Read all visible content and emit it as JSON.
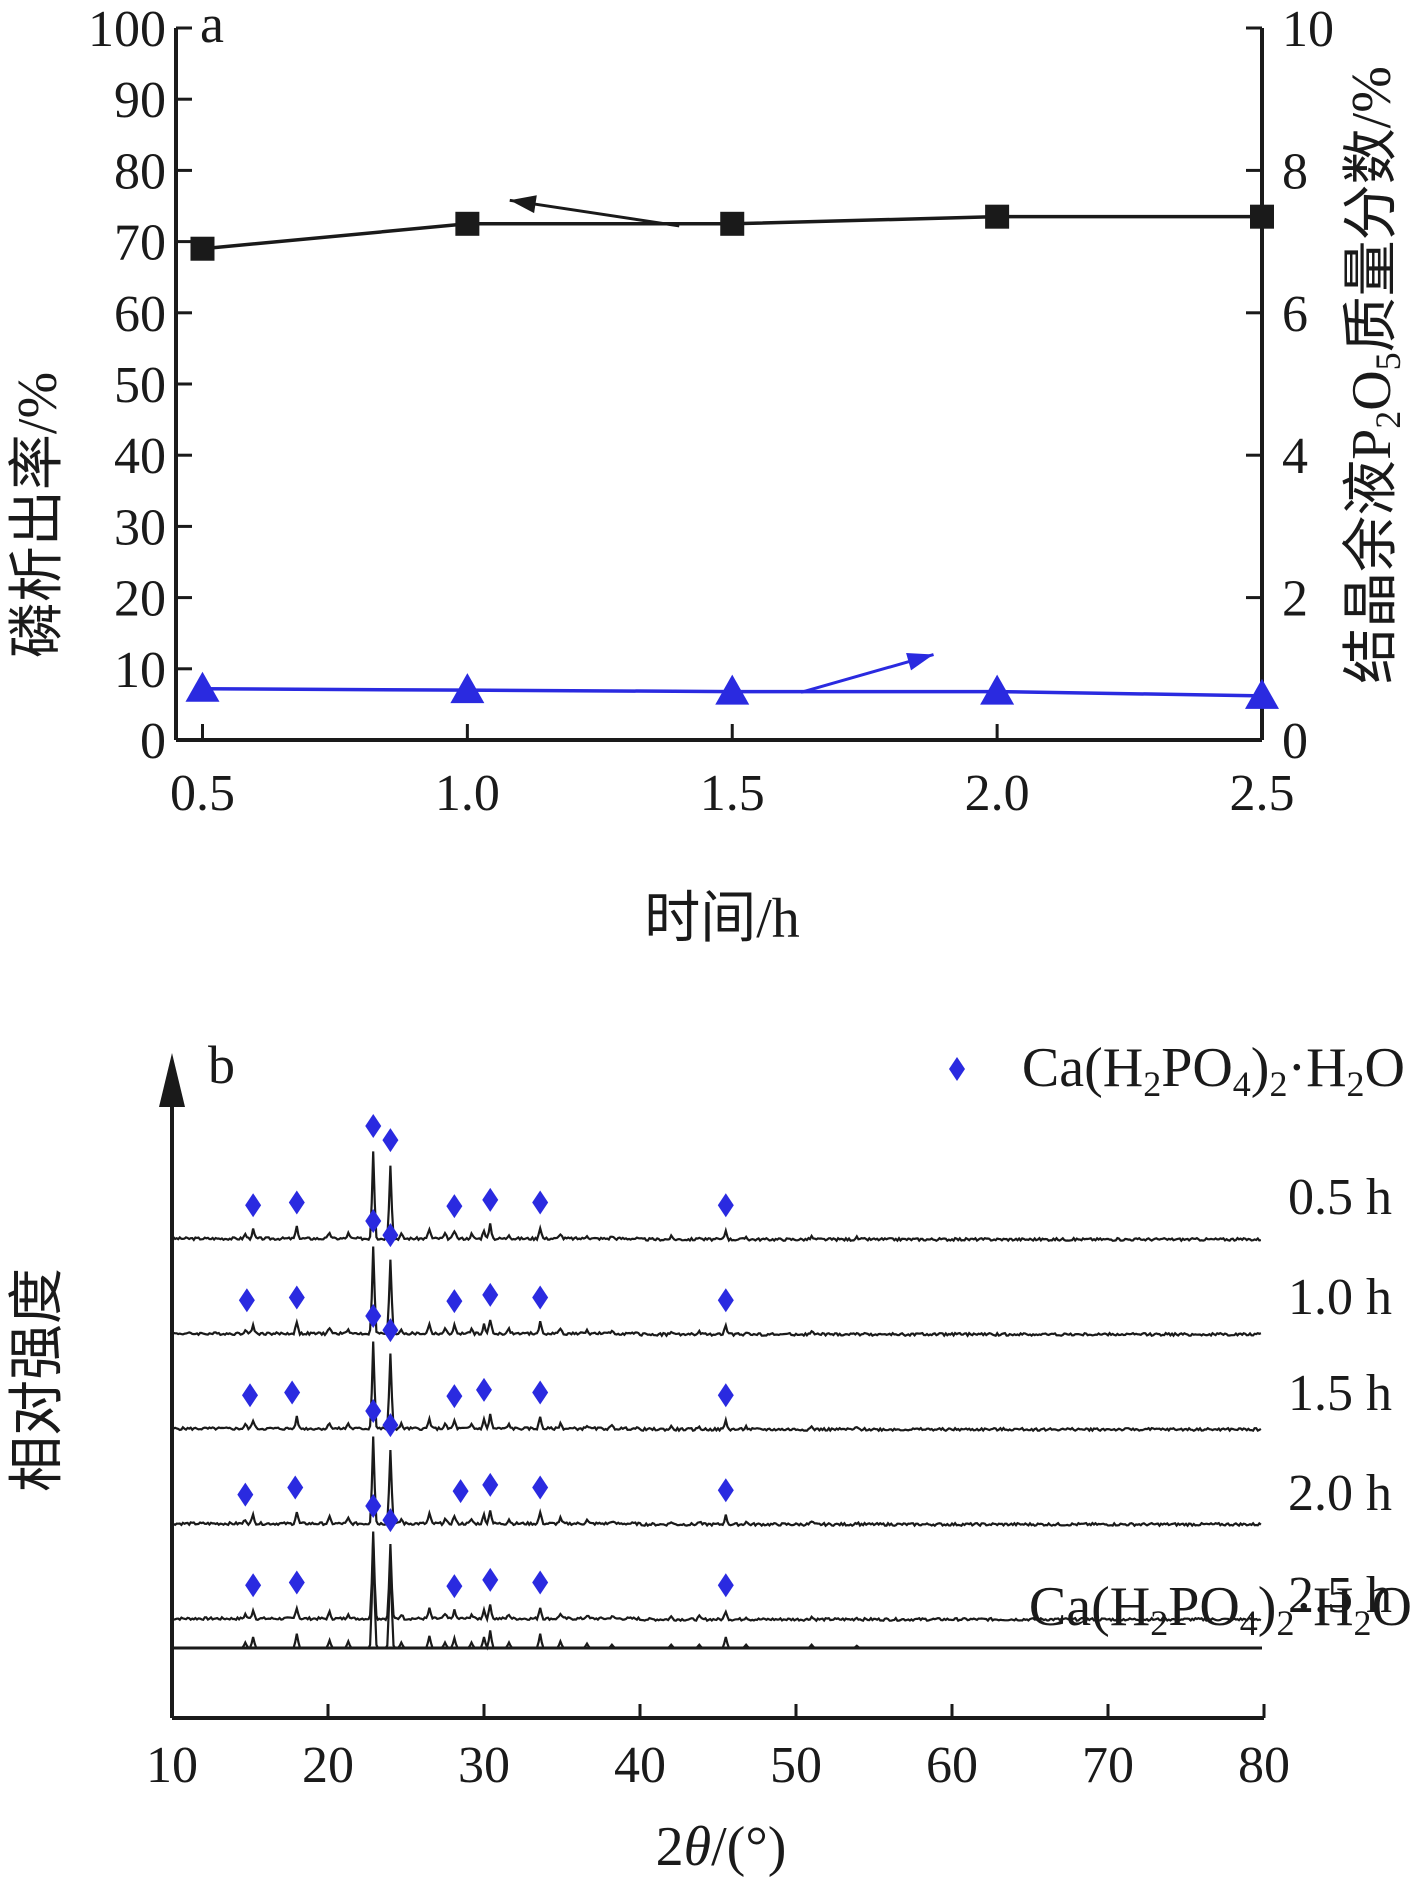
{
  "chart_data": [
    {
      "panel": "a",
      "type": "line",
      "x": [
        0.5,
        1.0,
        1.5,
        2.0,
        2.5
      ],
      "xlabel": "时间/h",
      "xlim": [
        0.45,
        2.5
      ],
      "x_ticks": [
        "0.5",
        "1.0",
        "1.5",
        "2.0",
        "2.5"
      ],
      "ylabel_left_parts": [
        "磷析出率/%"
      ],
      "ylabel_right_parts": [
        "结晶余液P",
        "2",
        "O",
        "5",
        "质量分数/%"
      ],
      "ylim_left": [
        0,
        100
      ],
      "ylim_right": [
        0,
        10
      ],
      "y_ticks_left": [
        "0",
        "10",
        "20",
        "30",
        "40",
        "50",
        "60",
        "70",
        "80",
        "90",
        "100"
      ],
      "y_ticks_right": [
        "0",
        "2",
        "4",
        "6",
        "8",
        "10"
      ],
      "series": [
        {
          "axis": "left",
          "marker": "square",
          "color": "#1a1a1a",
          "values": [
            69,
            72.5,
            72.5,
            73.5,
            73.5
          ]
        },
        {
          "axis": "right",
          "marker": "triangle",
          "color": "#2a2ae0",
          "values": [
            0.72,
            0.7,
            0.68,
            0.68,
            0.62
          ]
        }
      ],
      "arrows": [
        {
          "from": [
            1.4,
            72.2
          ],
          "to": [
            1.08,
            75.8
          ],
          "axis": "left",
          "color": "#1a1a1a"
        },
        {
          "from": [
            1.63,
            0.67
          ],
          "to": [
            1.88,
            1.2
          ],
          "axis": "right",
          "color": "#2a2ae0"
        }
      ]
    },
    {
      "panel": "b",
      "type": "line",
      "xlabel_prefix": "2",
      "xlabel_symbol": "θ",
      "xlabel_suffix": "/(°)",
      "ylabel": "相对强度",
      "xlim": [
        10,
        80
      ],
      "x_ticks": [
        "10",
        "20",
        "30",
        "40",
        "50",
        "60",
        "70",
        "80"
      ],
      "legend": {
        "marker": "diamond",
        "color": "#2a2ae0",
        "parts": [
          "Ca(H",
          "2",
          "PO",
          "4",
          ")",
          "2",
          "·H",
          "2",
          "O"
        ]
      },
      "reference_label_parts": [
        "Ca(H",
        "2",
        "PO",
        "4",
        ")",
        "2",
        "·H",
        "2",
        "O"
      ],
      "peaks": [
        {
          "two_theta": 14.7,
          "height": 5
        },
        {
          "two_theta": 15.2,
          "height": 10
        },
        {
          "two_theta": 18.0,
          "height": 13
        },
        {
          "two_theta": 20.1,
          "height": 7
        },
        {
          "two_theta": 21.3,
          "height": 6
        },
        {
          "two_theta": 22.9,
          "height": 100
        },
        {
          "two_theta": 24.0,
          "height": 84
        },
        {
          "two_theta": 24.7,
          "height": 5
        },
        {
          "two_theta": 26.5,
          "height": 11
        },
        {
          "two_theta": 27.5,
          "height": 5
        },
        {
          "two_theta": 28.1,
          "height": 9
        },
        {
          "two_theta": 29.2,
          "height": 5
        },
        {
          "two_theta": 30.0,
          "height": 10
        },
        {
          "two_theta": 30.4,
          "height": 16
        },
        {
          "two_theta": 31.6,
          "height": 5
        },
        {
          "two_theta": 33.6,
          "height": 13
        },
        {
          "two_theta": 34.9,
          "height": 6
        },
        {
          "two_theta": 36.6,
          "height": 4
        },
        {
          "two_theta": 38.2,
          "height": 3
        },
        {
          "two_theta": 42.0,
          "height": 3
        },
        {
          "two_theta": 43.8,
          "height": 3
        },
        {
          "two_theta": 45.5,
          "height": 10
        },
        {
          "two_theta": 46.8,
          "height": 3
        },
        {
          "two_theta": 51.0,
          "height": 3
        },
        {
          "two_theta": 53.9,
          "height": 2
        }
      ],
      "traces": [
        {
          "label": "0.5 h",
          "markers": [
            15.2,
            18.0,
            22.9,
            24.0,
            28.1,
            30.4,
            33.6,
            45.5
          ]
        },
        {
          "label": "1.0 h",
          "markers": [
            14.8,
            18.0,
            22.9,
            24.0,
            28.1,
            30.4,
            33.6,
            45.5
          ]
        },
        {
          "label": "1.5 h",
          "markers": [
            15.0,
            17.7,
            22.9,
            24.0,
            28.1,
            30.0,
            33.6,
            45.5
          ]
        },
        {
          "label": "2.0 h",
          "markers": [
            14.7,
            17.9,
            22.9,
            24.0,
            28.5,
            30.4,
            33.6,
            45.5
          ]
        },
        {
          "label": "2.5 h",
          "markers": [
            15.2,
            18.0,
            22.9,
            24.0,
            28.1,
            30.4,
            33.6,
            45.5
          ]
        }
      ]
    }
  ]
}
